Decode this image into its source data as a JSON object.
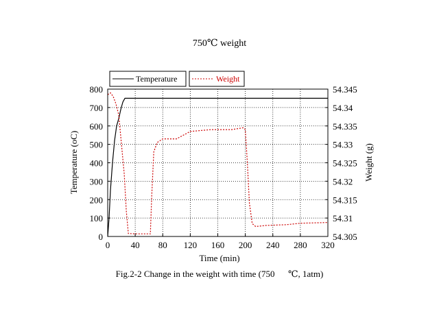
{
  "chart_data": {
    "type": "line",
    "title": "750℃  weight",
    "caption": "Fig.2-2 Change in the weight with time (750      ℃, 1atm)",
    "xlabel": "Time (min)",
    "ylabel_left": "Temperature (oC)",
    "ylabel_right": "Weight (g)",
    "xlim": [
      0,
      320
    ],
    "ylim_left": [
      0,
      800
    ],
    "ylim_right": [
      54.305,
      54.345
    ],
    "x_ticks": [
      0,
      40,
      80,
      120,
      160,
      200,
      240,
      280,
      320
    ],
    "y_left_ticks": [
      0,
      100,
      200,
      300,
      400,
      500,
      600,
      700,
      800
    ],
    "y_right_ticks": [
      "54.305",
      "54.31",
      "54.315",
      "54.32",
      "54.325",
      "54.33",
      "54.335",
      "54.34",
      "54.345"
    ],
    "grid": true,
    "legend_position": "top-left",
    "series": [
      {
        "name": "Temperature",
        "axis": "left",
        "color": "#000000",
        "style": "solid",
        "points": [
          [
            0,
            0
          ],
          [
            2,
            100
          ],
          [
            4,
            250
          ],
          [
            7,
            400
          ],
          [
            10,
            520
          ],
          [
            13,
            600
          ],
          [
            16,
            640
          ],
          [
            19,
            690
          ],
          [
            22,
            730
          ],
          [
            25,
            750
          ],
          [
            320,
            750
          ]
        ]
      },
      {
        "name": "Weight",
        "axis": "right",
        "color": "#cc0000",
        "style": "dotted",
        "points": [
          [
            0,
            54.3435
          ],
          [
            4,
            54.344
          ],
          [
            8,
            54.343
          ],
          [
            12,
            54.341
          ],
          [
            16,
            54.338
          ],
          [
            20,
            54.33
          ],
          [
            24,
            54.322
          ],
          [
            27,
            54.312
          ],
          [
            30,
            54.3058
          ],
          [
            40,
            54.3057
          ],
          [
            62,
            54.3057
          ],
          [
            64,
            54.316
          ],
          [
            67,
            54.328
          ],
          [
            72,
            54.3305
          ],
          [
            80,
            54.3315
          ],
          [
            100,
            54.3315
          ],
          [
            110,
            54.3325
          ],
          [
            120,
            54.3335
          ],
          [
            150,
            54.334
          ],
          [
            180,
            54.334
          ],
          [
            197,
            54.3345
          ],
          [
            200,
            54.334
          ],
          [
            203,
            54.325
          ],
          [
            206,
            54.314
          ],
          [
            210,
            54.3085
          ],
          [
            215,
            54.3077
          ],
          [
            230,
            54.308
          ],
          [
            260,
            54.3082
          ],
          [
            280,
            54.3086
          ],
          [
            320,
            54.3088
          ]
        ]
      }
    ]
  }
}
